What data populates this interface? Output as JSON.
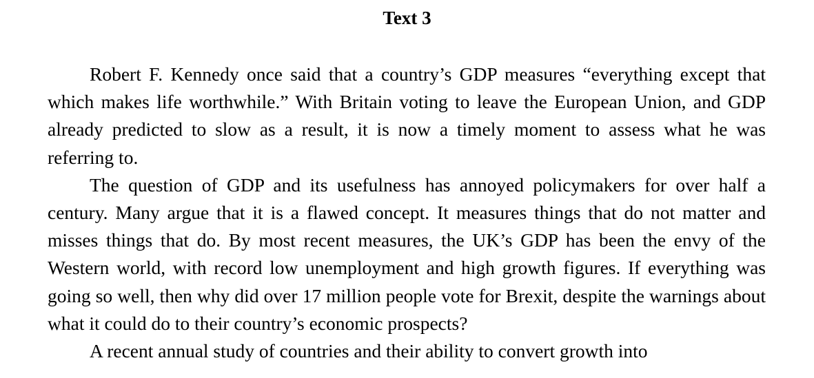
{
  "document": {
    "title": "Text 3",
    "paragraphs": [
      "Robert F. Kennedy once said that a country’s GDP measures “everything except that which makes life worthwhile.” With Britain voting to leave the European Union, and GDP already predicted to slow as a result, it is now a timely moment to assess what he was referring to.",
      "The question of GDP and its usefulness has annoyed policymakers for over half a century. Many argue that it is a flawed concept. It measures things that do not matter and misses things that do. By most recent measures, the UK’s GDP has been the envy of the Western world, with record low unemployment and high growth figures. If everything was going so well, then why did over 17 million people vote for Brexit, despite the warnings about what it could do to their country’s economic prospects?",
      "A recent annual study of countries and their ability to convert growth into"
    ]
  }
}
